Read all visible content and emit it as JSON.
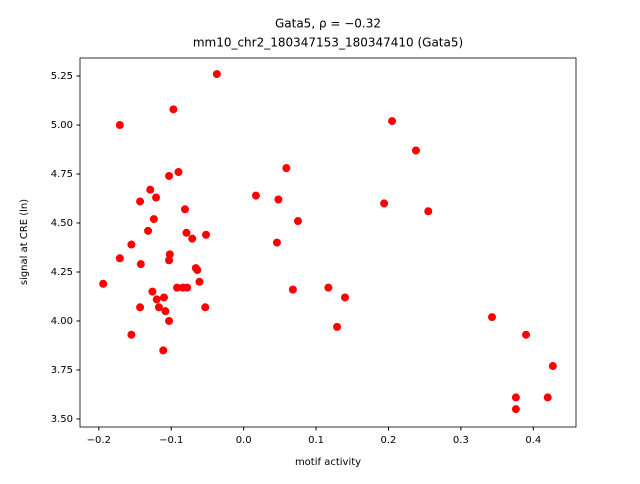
{
  "chart_data": {
    "type": "scatter",
    "title": "Gata5, ρ = −0.32",
    "subtitle": "mm10_chr2_180347153_180347410 (Gata5)",
    "x_label": "motif activity",
    "y_label": "signal at CRE (ln)",
    "color": "#ff0000",
    "xlim": [
      -0.226,
      0.459
    ],
    "ylim": [
      3.459,
      5.342
    ],
    "xticks": [
      {
        "value": -0.2,
        "label": "−0.2"
      },
      {
        "value": -0.1,
        "label": "−0.1"
      },
      {
        "value": 0,
        "label": "0.0"
      },
      0.1,
      0.2,
      0.3,
      0.4
    ],
    "yticks": [
      {
        "value": 3.5,
        "label": "3.50"
      },
      3.75,
      {
        "value": 4,
        "label": "4.00"
      },
      4.25,
      {
        "value": 4.5,
        "label": "4.50"
      },
      4.75,
      {
        "value": 5,
        "label": "5.00"
      },
      5.25
    ],
    "x": [
      -0.037,
      -0.171,
      -0.097,
      0.205,
      0.238,
      0.059,
      0.017,
      -0.09,
      -0.103,
      -0.129,
      -0.143,
      -0.121,
      0.048,
      0.194,
      0.255,
      -0.081,
      -0.124,
      0.075,
      -0.132,
      -0.079,
      -0.071,
      -0.052,
      0.046,
      -0.155,
      -0.171,
      -0.102,
      -0.103,
      -0.142,
      -0.066,
      -0.064,
      -0.194,
      -0.061,
      -0.092,
      -0.084,
      -0.078,
      0.068,
      0.117,
      0.14,
      -0.126,
      -0.12,
      -0.11,
      -0.143,
      -0.117,
      -0.108,
      -0.053,
      -0.103,
      0.129,
      0.343,
      -0.155,
      0.39,
      -0.111,
      0.427,
      0.376,
      0.42,
      0.376
    ],
    "y": [
      5.26,
      5.0,
      5.08,
      5.02,
      4.87,
      4.78,
      4.64,
      4.76,
      4.74,
      4.67,
      4.61,
      4.63,
      4.62,
      4.6,
      4.56,
      4.57,
      4.52,
      4.51,
      4.46,
      4.45,
      4.42,
      4.44,
      4.4,
      4.39,
      4.32,
      4.34,
      4.31,
      4.29,
      4.27,
      4.26,
      4.19,
      4.2,
      4.17,
      4.17,
      4.17,
      4.16,
      4.17,
      4.12,
      4.15,
      4.11,
      4.12,
      4.07,
      4.07,
      4.05,
      4.07,
      4.0,
      3.97,
      4.02,
      3.93,
      3.93,
      3.85,
      3.77,
      3.61,
      3.61,
      3.55
    ]
  }
}
